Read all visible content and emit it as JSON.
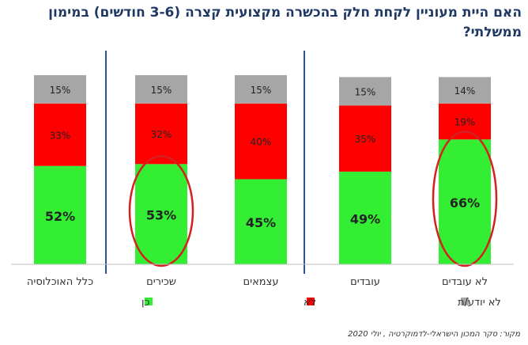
{
  "title": "האם היית מעוניין לקחת חלק בהכשרה מקצועית קצרה (3-6 חודשים) במימון ממשלתי?",
  "source": "מקור: סקר המכון הישראלי-לדמוקרטיה , יולי 2020",
  "colors": {
    "yes": "#33ee33",
    "no": "#ff0000",
    "dontknow": "#a6a6a6",
    "separator": "#2f5597",
    "highlight": "#d42020",
    "title": "#1f3864"
  },
  "chart_data": {
    "type": "bar",
    "stacked": true,
    "unit": "%",
    "categories": [
      "כלל האוכלוסיה",
      "שכירים",
      "עצמאים",
      "עובדים",
      "לא עובדים"
    ],
    "series": [
      {
        "name": "כן",
        "color_key": "yes",
        "values": [
          52,
          53,
          45,
          49,
          66
        ],
        "labels": [
          "52%",
          "53%",
          "45%",
          "49%",
          "66%"
        ]
      },
      {
        "name": "לא",
        "color_key": "no",
        "values": [
          33,
          32,
          40,
          35,
          19
        ],
        "labels": [
          "33%",
          "32%",
          "40%",
          "35%",
          "19%"
        ]
      },
      {
        "name": "לא יודע/ת",
        "color_key": "dontknow",
        "values": [
          15,
          15,
          15,
          15,
          14
        ],
        "labels": [
          "15%",
          "15%",
          "15%",
          "15%",
          "14%"
        ]
      }
    ],
    "highlighted_categories": [
      "שכירים",
      "לא עובדים"
    ],
    "group_separators_after": [
      "כלל האוכלוסיה",
      "עצמאים"
    ],
    "legend_position": "bottom",
    "grid": false
  }
}
